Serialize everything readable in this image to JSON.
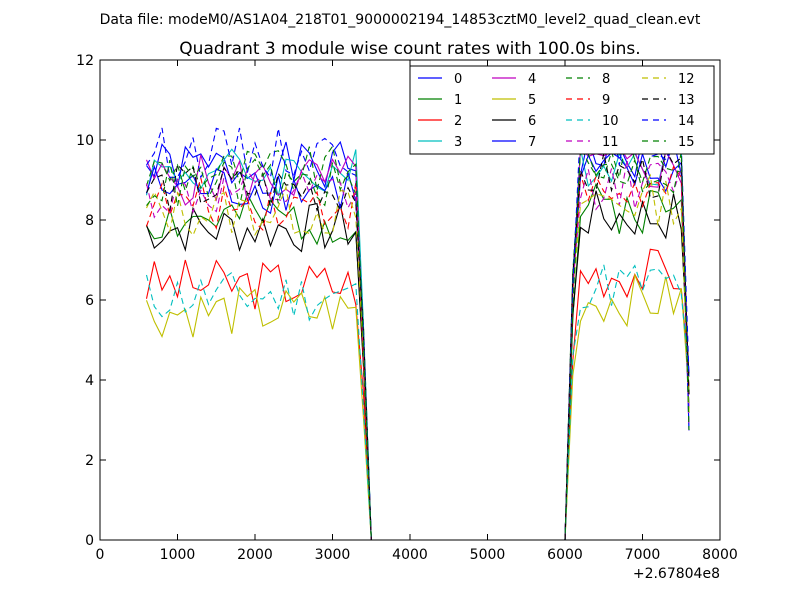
{
  "chart_data": {
    "type": "line",
    "suptitle": "Data file: modeM0/AS1A04_218T01_9000002194_14853cztM0_level2_quad_clean.evt",
    "title": "Quadrant 3 module wise count rates with 100.0s bins.",
    "xlabel": "",
    "ylabel": "",
    "x_offset_label": "+2.67804e8",
    "xlim": [
      0,
      8000
    ],
    "ylim": [
      0,
      12
    ],
    "xticks": [
      "0",
      "1000",
      "2000",
      "3000",
      "4000",
      "5000",
      "6000",
      "7000",
      "8000"
    ],
    "yticks": [
      "0",
      "2",
      "4",
      "6",
      "8",
      "10",
      "12"
    ],
    "grid": false,
    "legend_position": "top-right",
    "segments": [
      {
        "start": 600,
        "end": 3500,
        "step": 100
      },
      {
        "start": 6000,
        "end": 7600,
        "step": 100
      }
    ],
    "series": [
      {
        "name": "0",
        "color": "#0000ff",
        "dash": "solid",
        "level": 9.3,
        "seed": 1
      },
      {
        "name": "1",
        "color": "#008000",
        "dash": "solid",
        "level": 8.0,
        "seed": 2
      },
      {
        "name": "2",
        "color": "#ff0000",
        "dash": "solid",
        "level": 6.4,
        "seed": 3
      },
      {
        "name": "3",
        "color": "#00bfbf",
        "dash": "solid",
        "level": 9.2,
        "seed": 4
      },
      {
        "name": "4",
        "color": "#bf00bf",
        "dash": "solid",
        "level": 9.0,
        "seed": 5
      },
      {
        "name": "5",
        "color": "#bfbf00",
        "dash": "solid",
        "level": 5.7,
        "seed": 6
      },
      {
        "name": "6",
        "color": "#000000",
        "dash": "solid",
        "level": 7.8,
        "seed": 7
      },
      {
        "name": "7",
        "color": "#0000ff",
        "dash": "solid",
        "level": 8.8,
        "seed": 8
      },
      {
        "name": "8",
        "color": "#008000",
        "dash": "dashed",
        "level": 9.2,
        "seed": 9
      },
      {
        "name": "9",
        "color": "#ff0000",
        "dash": "dashed",
        "level": 8.4,
        "seed": 10
      },
      {
        "name": "10",
        "color": "#00bfbf",
        "dash": "dashed",
        "level": 6.1,
        "seed": 11
      },
      {
        "name": "11",
        "color": "#bf00bf",
        "dash": "dashed",
        "level": 8.6,
        "seed": 12
      },
      {
        "name": "12",
        "color": "#bfbf00",
        "dash": "dashed",
        "level": 8.2,
        "seed": 13
      },
      {
        "name": "13",
        "color": "#000000",
        "dash": "dashed",
        "level": 8.8,
        "seed": 14
      },
      {
        "name": "14",
        "color": "#0000ff",
        "dash": "dashed",
        "level": 9.7,
        "seed": 15
      },
      {
        "name": "15",
        "color": "#008000",
        "dash": "dashed",
        "level": 8.9,
        "seed": 16
      }
    ]
  }
}
